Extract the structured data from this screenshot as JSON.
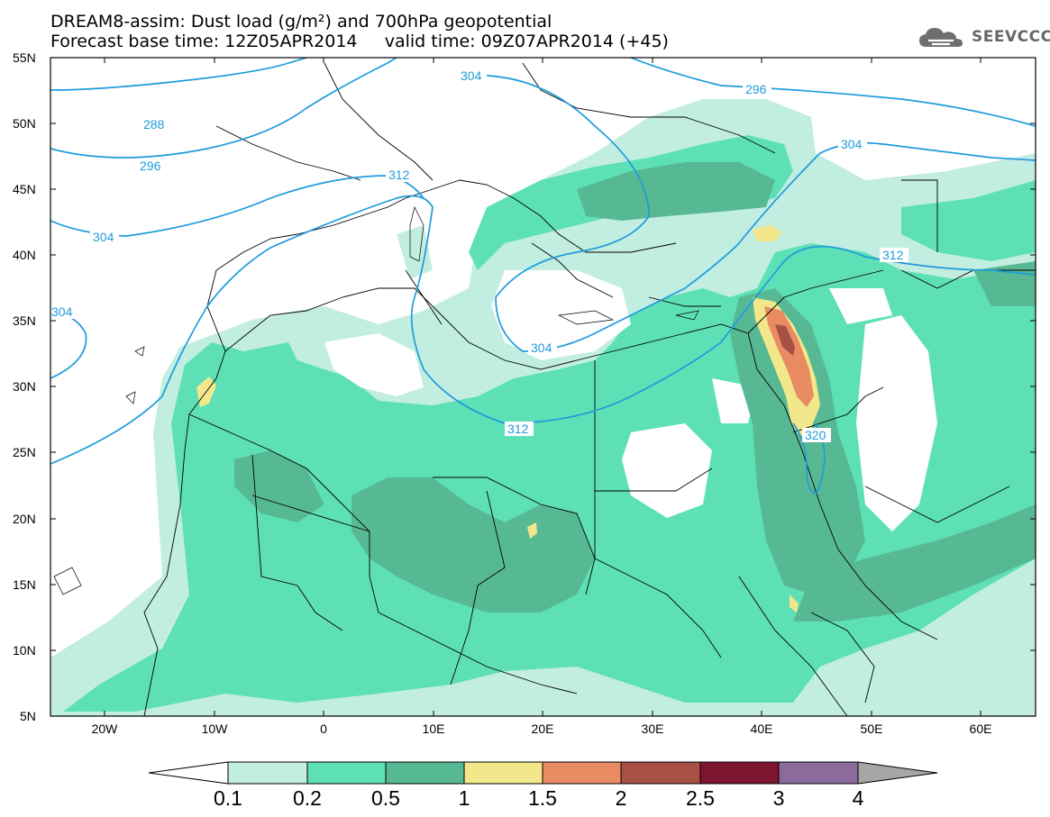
{
  "header": {
    "title_line1": "DREAM8-assim: Dust load (g/m²) and 700hPa geopotential",
    "title_line2": "Forecast base time: 12Z05APR2014     valid time: 09Z07APR2014 (+45)"
  },
  "logo": {
    "text": "SEEVCCC",
    "icon": "cloud-icon"
  },
  "map": {
    "lat_labels": [
      "55N",
      "50N",
      "45N",
      "40N",
      "35N",
      "30N",
      "25N",
      "20N",
      "15N",
      "10N",
      "5N"
    ],
    "lon_labels": [
      "20W",
      "10W",
      "0",
      "10E",
      "20E",
      "30E",
      "40E",
      "50E",
      "60E"
    ],
    "contour_color": "#1e9bdc",
    "contours": [
      {
        "label": "288"
      },
      {
        "label": "296"
      },
      {
        "label": "304"
      },
      {
        "label": "304"
      },
      {
        "label": "312"
      },
      {
        "label": "304"
      },
      {
        "label": "296"
      },
      {
        "label": "304"
      },
      {
        "label": "312"
      },
      {
        "label": "304"
      },
      {
        "label": "312"
      },
      {
        "label": "320"
      }
    ],
    "dust_colors": {
      "c01": "#c2ede1",
      "c02": "#5ee0b6",
      "c05": "#57b993",
      "c1": "#f2e88b",
      "c15": "#e98c63",
      "c2": "#a85043",
      "c25": "#7d1530",
      "c3": "#8c6a9c",
      "c4": "#a6a6a6"
    }
  },
  "colorbar": {
    "labels": [
      "0.1",
      "0.2",
      "0.5",
      "1",
      "1.5",
      "2",
      "2.5",
      "3",
      "4"
    ],
    "colors": [
      "#c2ede1",
      "#5ee0b6",
      "#57b993",
      "#f2e88b",
      "#e98c63",
      "#a85043",
      "#7d1530",
      "#8c6a9c"
    ]
  }
}
